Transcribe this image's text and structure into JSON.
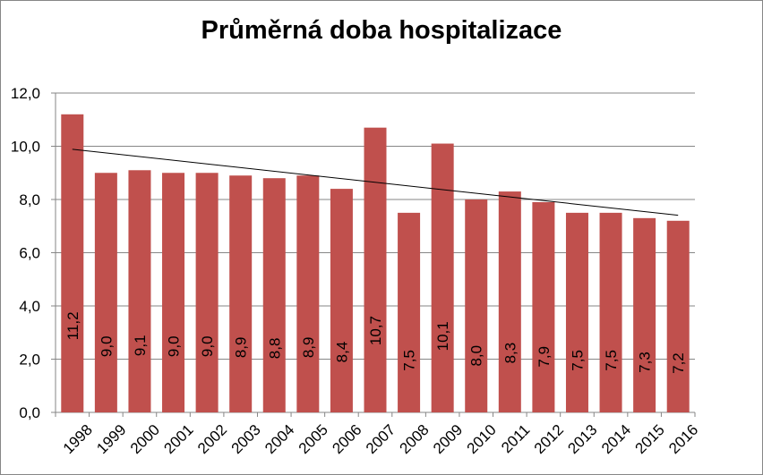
{
  "chart_data": {
    "type": "bar",
    "title": "Průměrná doba hospitalizace",
    "xlabel": "",
    "ylabel": "",
    "categories": [
      "1998",
      "1999",
      "2000",
      "2001",
      "2002",
      "2003",
      "2004",
      "2005",
      "2006",
      "2007",
      "2008",
      "2009",
      "2010",
      "2011",
      "2012",
      "2013",
      "2014",
      "2015",
      "2016"
    ],
    "values": [
      11.2,
      9.0,
      9.1,
      9.0,
      9.0,
      8.9,
      8.8,
      8.9,
      8.4,
      10.7,
      7.5,
      10.1,
      8.0,
      8.3,
      7.9,
      7.5,
      7.5,
      7.3,
      7.2
    ],
    "data_labels": [
      "11,2",
      "9,0",
      "9,1",
      "9,0",
      "9,0",
      "8,9",
      "8,8",
      "8,9",
      "8,4",
      "10,7",
      "7,5",
      "10,1",
      "8,0",
      "8,3",
      "7,9",
      "7,5",
      "7,5",
      "7,3",
      "7,2"
    ],
    "ylim": [
      0,
      12
    ],
    "yticks": [
      0,
      2,
      4,
      6,
      8,
      10,
      12
    ],
    "ytick_labels": [
      "0,0",
      "2,0",
      "4,0",
      "6,0",
      "8,0",
      "10,0",
      "12,0"
    ],
    "grid": true,
    "trendline": {
      "type": "linear",
      "color": "#000000"
    },
    "bar_color": "#c0504d",
    "legend": "none"
  }
}
